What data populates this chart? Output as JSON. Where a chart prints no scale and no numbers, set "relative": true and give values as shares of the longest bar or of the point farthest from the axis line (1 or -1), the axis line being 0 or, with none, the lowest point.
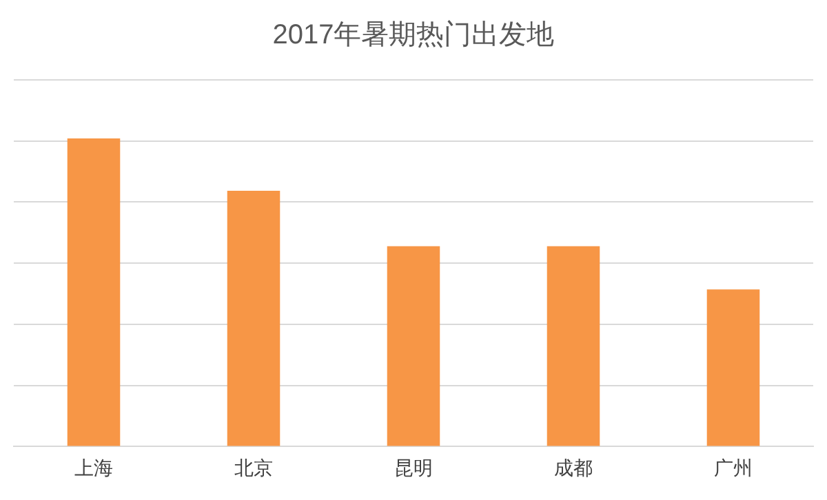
{
  "chart_data": {
    "type": "bar",
    "title": "2017年暑期热门出发地",
    "categories": [
      "上海",
      "北京",
      "昆明",
      "成都",
      "广州"
    ],
    "values": [
      1,
      0.83,
      0.65,
      0.65,
      0.51
    ],
    "color": "#f79646",
    "relative": true,
    "grid": "y"
  }
}
